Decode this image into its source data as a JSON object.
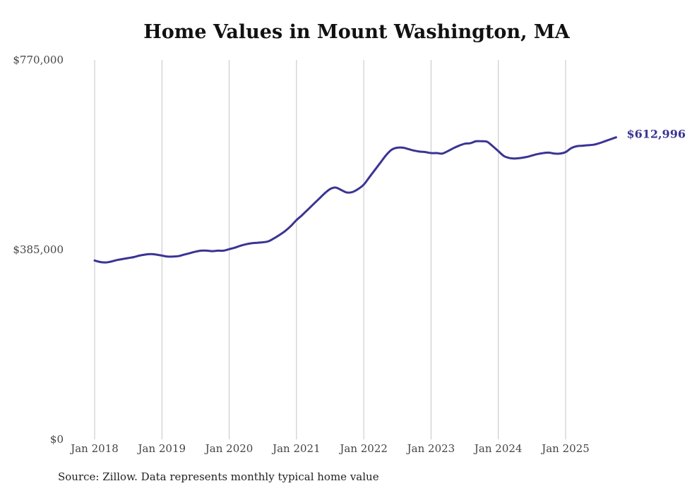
{
  "chart_data": {
    "type": "line",
    "title": "Home Values in Mount Washington, MA",
    "xlabel": "",
    "ylabel": "",
    "source": "Source: Zillow. Data represents monthly typical home value",
    "start_month": "Jan 2018",
    "ylim": [
      0,
      770000
    ],
    "y_ticks": [
      {
        "value": 0,
        "label": "$0"
      },
      {
        "value": 385000,
        "label": "$385,000"
      },
      {
        "value": 770000,
        "label": "$770,000"
      }
    ],
    "x_ticks": [
      {
        "month_index": 0,
        "label": "Jan 2018"
      },
      {
        "month_index": 12,
        "label": "Jan 2019"
      },
      {
        "month_index": 24,
        "label": "Jan 2020"
      },
      {
        "month_index": 36,
        "label": "Jan 2021"
      },
      {
        "month_index": 48,
        "label": "Jan 2022"
      },
      {
        "month_index": 60,
        "label": "Jan 2023"
      },
      {
        "month_index": 72,
        "label": "Jan 2024"
      },
      {
        "month_index": 84,
        "label": "Jan 2025"
      }
    ],
    "grid": "vertical",
    "line_color": "#3a3494",
    "end_label": "$612,996",
    "series": [
      {
        "name": "Typical home value",
        "values": [
          363000,
          360000,
          359000,
          361000,
          364000,
          366000,
          368000,
          370000,
          373000,
          375000,
          376000,
          375000,
          373000,
          371000,
          371000,
          372000,
          375000,
          378000,
          381000,
          383000,
          383000,
          382000,
          383000,
          383000,
          386000,
          389000,
          393000,
          396000,
          398000,
          399000,
          400000,
          402000,
          408000,
          415000,
          423000,
          433000,
          445000,
          455000,
          466000,
          477000,
          488000,
          499000,
          508000,
          511000,
          506000,
          501000,
          502000,
          508000,
          517000,
          532000,
          547000,
          562000,
          577000,
          588000,
          592000,
          592000,
          589000,
          586000,
          584000,
          583000,
          581000,
          581000,
          580000,
          585000,
          591000,
          596000,
          600000,
          601000,
          605000,
          605000,
          604000,
          595000,
          585000,
          575000,
          571000,
          570000,
          571000,
          573000,
          576000,
          579000,
          581000,
          582000,
          580000,
          580000,
          583000,
          591000,
          595000,
          596000,
          597000,
          598000,
          601000,
          605000,
          609000,
          612996
        ]
      }
    ]
  }
}
